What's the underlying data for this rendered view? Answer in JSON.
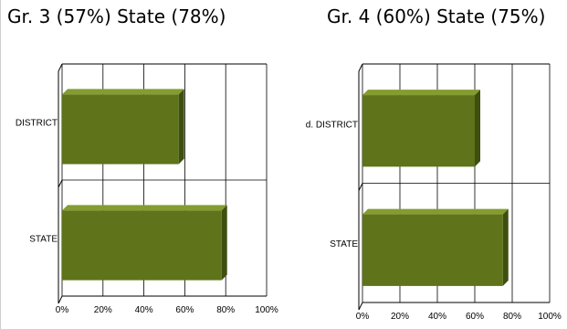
{
  "colors": {
    "bar_front": "#5e731a",
    "bar_top": "#849c30",
    "bar_side": "#3f4f0f",
    "grid": "#000000"
  },
  "chart_data": [
    {
      "type": "bar",
      "orientation": "horizontal",
      "title": "Gr. 3 (57%) State (78%)",
      "categories": [
        "DISTRICT",
        "STATE"
      ],
      "values": [
        57,
        78
      ],
      "xlim": [
        0,
        100
      ],
      "x_ticks": [
        "0%",
        "20%",
        "40%",
        "60%",
        "80%",
        "100%"
      ],
      "grid": true,
      "style": "3d"
    },
    {
      "type": "bar",
      "orientation": "horizontal",
      "title": "Gr. 4 (60%) State (75%)",
      "categories": [
        "d. DISTRICT",
        "STATE"
      ],
      "values": [
        60,
        75
      ],
      "xlim": [
        0,
        100
      ],
      "x_ticks": [
        "0%",
        "20%",
        "40%",
        "60%",
        "80%",
        "100%"
      ],
      "grid": true,
      "style": "3d"
    }
  ]
}
